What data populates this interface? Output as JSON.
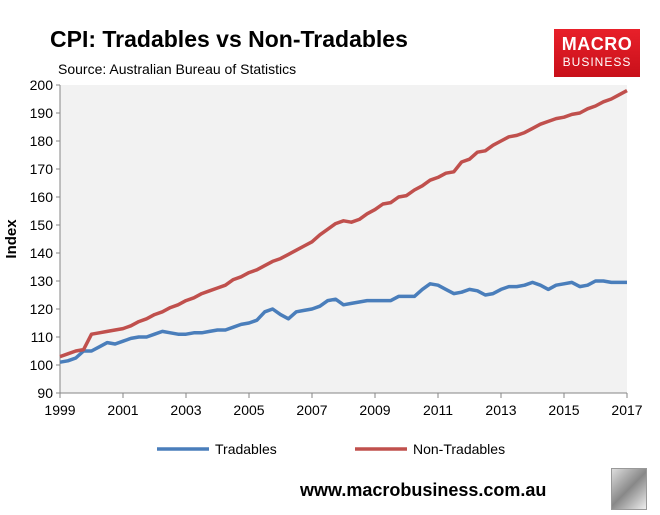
{
  "header": {
    "title": "CPI: Tradables vs Non-Tradables",
    "subtitle": "Source: Australian Bureau of Statistics"
  },
  "logo": {
    "line1": "MACRO",
    "line2": "BUSINESS",
    "color": "#e31b23"
  },
  "footer": {
    "url": "www.macrobusiness.com.au",
    "icon": "wolf-logo-icon"
  },
  "chart_data": {
    "type": "line",
    "title": "CPI: Tradables vs Non-Tradables",
    "xlabel": "",
    "ylabel": "Index",
    "xlim": [
      1999,
      2017
    ],
    "ylim": [
      90,
      200
    ],
    "xticks": [
      "1999",
      "2001",
      "2003",
      "2005",
      "2007",
      "2009",
      "2011",
      "2013",
      "2015",
      "2017"
    ],
    "yticks": [
      "90",
      "100",
      "110",
      "120",
      "130",
      "140",
      "150",
      "160",
      "170",
      "180",
      "190",
      "200"
    ],
    "grid": false,
    "legend": "bottom",
    "background": "#f2f2f2",
    "x_start": "1999Q1",
    "x_frequency": "quarterly",
    "series": [
      {
        "name": "Tradables",
        "color": "#4a7ebb",
        "values": [
          101,
          101.5,
          102.5,
          105,
          105,
          106.5,
          108,
          107.5,
          108.5,
          109.5,
          110,
          110,
          111,
          112,
          111.5,
          111,
          111,
          111.5,
          111.5,
          112,
          112.5,
          112.5,
          113.5,
          114.5,
          115,
          116,
          119,
          120,
          118,
          116.5,
          119,
          119.5,
          120,
          121,
          123,
          123.5,
          121.5,
          122,
          122.5,
          123,
          123,
          123,
          123,
          124.5,
          124.5,
          124.5,
          127,
          129,
          128.5,
          127,
          125.5,
          126,
          127,
          126.5,
          125,
          125.5,
          127,
          128,
          128,
          128.5,
          129.5,
          128.5,
          127,
          128.5,
          129,
          129.5,
          128,
          128.5,
          130,
          130,
          129.5,
          129.5,
          129.5
        ]
      },
      {
        "name": "Non-Tradables",
        "color": "#c0504d",
        "values": [
          103,
          104,
          105,
          105.5,
          111,
          111.5,
          112,
          112.5,
          113,
          114,
          115.5,
          116.5,
          118,
          119,
          120.5,
          121.5,
          123,
          124,
          125.5,
          126.5,
          127.5,
          128.5,
          130.5,
          131.5,
          133,
          134,
          135.5,
          137,
          138,
          139.5,
          141,
          142.5,
          144,
          146.5,
          148.5,
          150.5,
          151.5,
          151,
          152,
          154,
          155.5,
          157.5,
          158,
          160,
          160.5,
          162.5,
          164,
          166,
          167,
          168.5,
          169,
          172.5,
          173.5,
          176,
          176.5,
          178.5,
          180,
          181.5,
          182,
          183,
          184.5,
          186,
          187,
          188,
          188.5,
          189.5,
          190,
          191.5,
          192.5,
          194,
          195,
          196.5,
          198
        ]
      }
    ]
  }
}
